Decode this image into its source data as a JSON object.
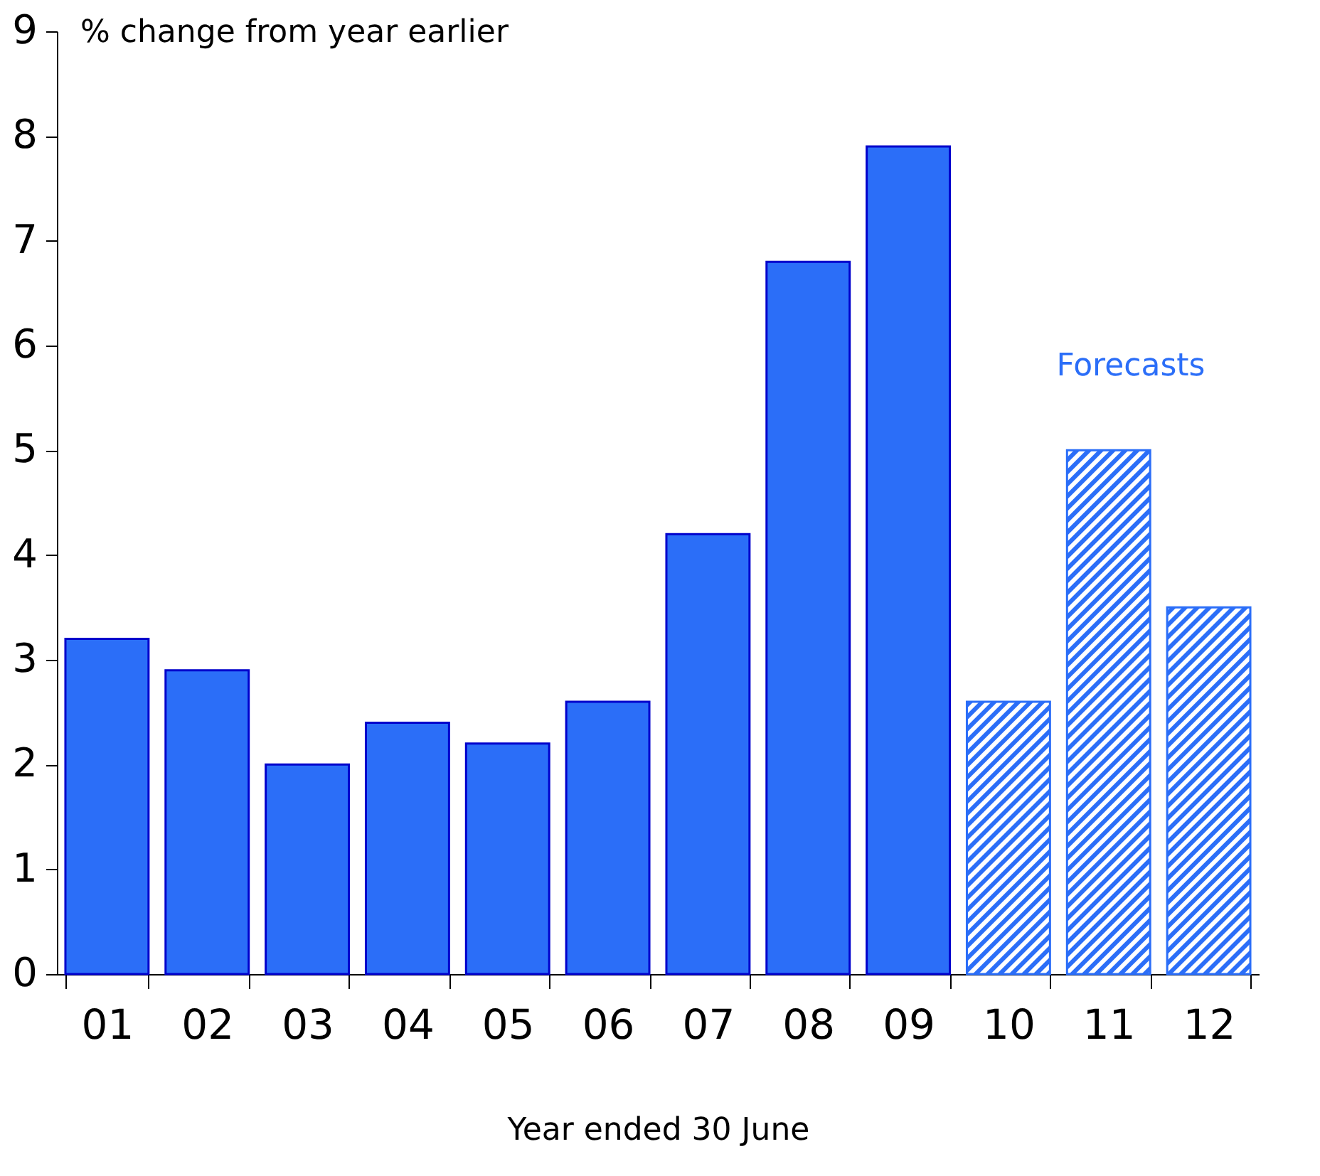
{
  "chart_data": {
    "type": "bar",
    "ylabel": "% change from year earlier",
    "xlabel": "Year ended 30 June",
    "categories": [
      "01",
      "02",
      "03",
      "04",
      "05",
      "06",
      "07",
      "08",
      "09",
      "10",
      "11",
      "12"
    ],
    "series": [
      {
        "color": "#2b6ef8",
        "values": [
          3.2,
          2.9,
          2.0,
          2.4,
          2.2,
          2.6,
          4.2,
          6.8,
          7.9,
          null,
          null,
          null
        ]
      },
      {
        "color": "#2b6ef8",
        "values": [
          null,
          null,
          null,
          null,
          null,
          null,
          null,
          null,
          null,
          2.6,
          5.0,
          3.5
        ]
      }
    ],
    "ylim": [
      0,
      9
    ],
    "yticks": [
      0,
      1,
      2,
      3,
      4,
      5,
      6,
      7,
      8,
      9
    ],
    "annotations": [
      "Forecasts"
    ]
  }
}
